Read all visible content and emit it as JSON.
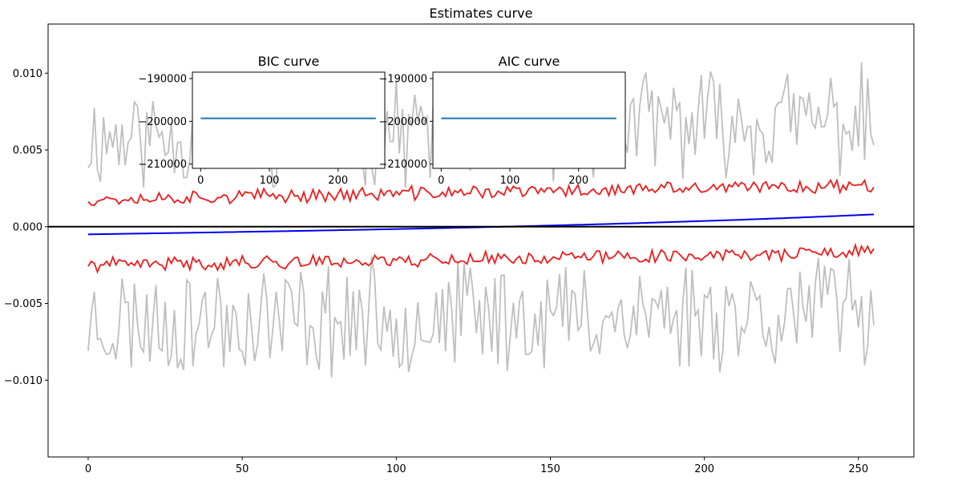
{
  "chart_data": [
    {
      "type": "line",
      "title": "Estimates curve",
      "xlabel": "",
      "ylabel": "",
      "xlim": [
        -13,
        268
      ],
      "ylim": [
        -0.015,
        0.0132
      ],
      "xticks": [
        0,
        50,
        100,
        150,
        200,
        250
      ],
      "xtick_labels": [
        "0",
        "50",
        "100",
        "150",
        "200",
        "250"
      ],
      "yticks": [
        -0.01,
        -0.005,
        0.0,
        0.005,
        0.01
      ],
      "ytick_labels": [
        "−0.010",
        "−0.005",
        "0.000",
        "0.005",
        "0.010"
      ],
      "grid": false,
      "legend": "none",
      "hline": {
        "y": 0.0,
        "color": "#000000"
      },
      "series": [
        {
          "role": "upper-band-outer",
          "color": "#bfbfbf",
          "generator": {
            "base": 0.0058,
            "amp": 0.003,
            "seed": 11,
            "trend": 4.5e-06
          }
        },
        {
          "role": "lower-band-outer",
          "color": "#bfbfbf",
          "generator": {
            "base": -0.0062,
            "amp": 0.0032,
            "seed": 23,
            "trend": 3e-06
          }
        },
        {
          "role": "upper-band-inner",
          "color": "#ee1c1c",
          "generator": {
            "base": 0.0018,
            "amp": 0.0004,
            "seed": 37,
            "trend": 3.5e-06
          }
        },
        {
          "role": "lower-band-inner",
          "color": "#ee1c1c",
          "generator": {
            "base": -0.0025,
            "amp": 0.0004,
            "seed": 41,
            "trend": 3.2e-06
          }
        },
        {
          "role": "estimate",
          "color": "#0000ee",
          "generator": {
            "start": -0.0005,
            "end": 0.0008,
            "n": 256
          }
        }
      ],
      "n_points": 256
    },
    {
      "type": "line",
      "title": "BIC curve",
      "xlim": [
        -12,
        268
      ],
      "ylim": [
        -211000,
        -188500
      ],
      "xticks": [
        0,
        100,
        200
      ],
      "xtick_labels": [
        "0",
        "100",
        "200"
      ],
      "yticks": [
        -190000,
        -200000,
        -210000
      ],
      "ytick_labels": [
        "−190000",
        "−200000",
        "−210000"
      ],
      "series": [
        {
          "color": "#1f77b4",
          "x": [
            0,
            255
          ],
          "y": [
            -199300,
            -199300
          ]
        }
      ]
    },
    {
      "type": "line",
      "title": "AIC curve",
      "xlim": [
        -12,
        268
      ],
      "ylim": [
        -211000,
        -188500
      ],
      "xticks": [
        0,
        100,
        200
      ],
      "xtick_labels": [
        "0",
        "100",
        "200"
      ],
      "yticks": [
        -190000,
        -200000,
        -210000
      ],
      "ytick_labels": [
        "−190000",
        "−200000",
        "−210000"
      ],
      "series": [
        {
          "color": "#1f77b4",
          "x": [
            0,
            255
          ],
          "y": [
            -199300,
            -199300
          ]
        }
      ]
    }
  ]
}
